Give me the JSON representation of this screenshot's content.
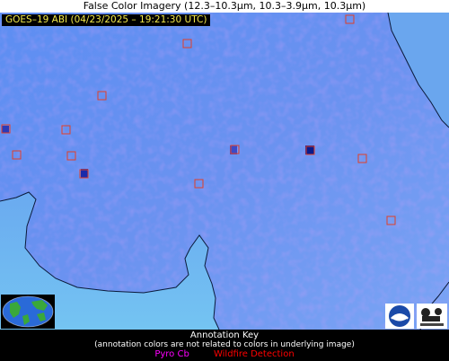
{
  "title": "False Color Imagery (12.3–10.3µm, 10.3–3.9µm, 10.3µm)",
  "satellite_label": "GOES–19 ABI (04/23/2025 – 19:21:30 UTC)",
  "annotation_key": {
    "heading": "Annotation Key",
    "note": "(annotation colors are not related to colors in underlying image)",
    "items": [
      {
        "label": "Pyro Cb",
        "color": "#ff00ff"
      },
      {
        "label": "Wildfire Detection",
        "color": "#ff0000"
      }
    ]
  },
  "colors": {
    "background_blue": "#5a8ef0",
    "water_blue": "#6cb8f0",
    "coastline": "#0a1a3a",
    "detection_box": "#e0402a"
  },
  "logos": [
    "noaa-logo",
    "cimss-logo"
  ],
  "globe": "earth-globe-icon"
}
